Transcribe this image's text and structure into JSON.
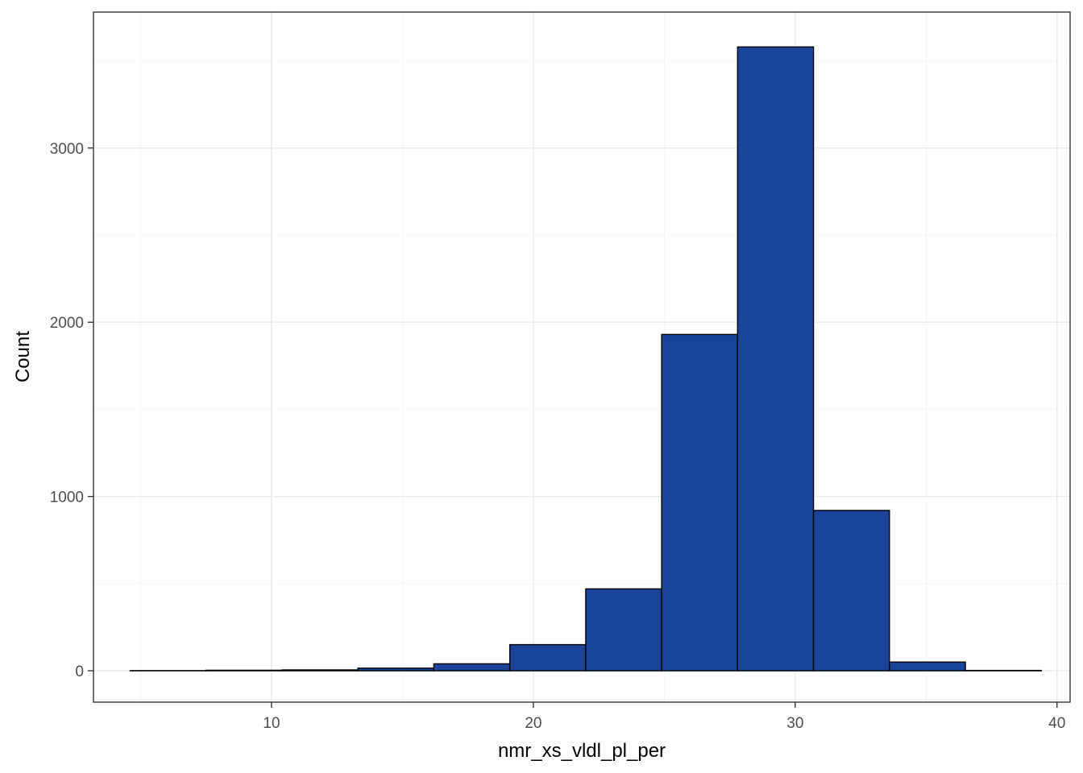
{
  "chart_data": {
    "type": "bar",
    "subtype": "histogram",
    "title": "",
    "xlabel": "nmr_xs_vldl_pl_per",
    "ylabel": "Count",
    "xlim": [
      3.2,
      40.5
    ],
    "ylim": [
      -180,
      3780
    ],
    "x_ticks": [
      10,
      20,
      30,
      40
    ],
    "y_ticks": [
      0,
      1000,
      2000,
      3000
    ],
    "x_tick_labels": [
      "10",
      "20",
      "30",
      "40"
    ],
    "y_tick_labels": [
      "0",
      "1000",
      "2000",
      "3000"
    ],
    "bins": [
      {
        "x0": 4.6,
        "x1": 7.5,
        "count": 1
      },
      {
        "x0": 7.5,
        "x1": 10.4,
        "count": 3
      },
      {
        "x0": 10.4,
        "x1": 13.3,
        "count": 5
      },
      {
        "x0": 13.3,
        "x1": 16.2,
        "count": 15
      },
      {
        "x0": 16.2,
        "x1": 19.1,
        "count": 40
      },
      {
        "x0": 19.1,
        "x1": 22.0,
        "count": 150
      },
      {
        "x0": 22.0,
        "x1": 24.9,
        "count": 470
      },
      {
        "x0": 24.9,
        "x1": 27.8,
        "count": 1930
      },
      {
        "x0": 27.8,
        "x1": 30.7,
        "count": 3580
      },
      {
        "x0": 30.7,
        "x1": 33.6,
        "count": 920
      },
      {
        "x0": 33.6,
        "x1": 36.5,
        "count": 50
      },
      {
        "x0": 36.5,
        "x1": 39.4,
        "count": 2
      }
    ],
    "grid": true,
    "legend": "none",
    "colors": {
      "bar_fill": "#1a4499",
      "bar_stroke": "#000000",
      "grid_major": "#ebebeb",
      "grid_minor": "#f5f5f5",
      "panel_border": "#333333"
    }
  }
}
